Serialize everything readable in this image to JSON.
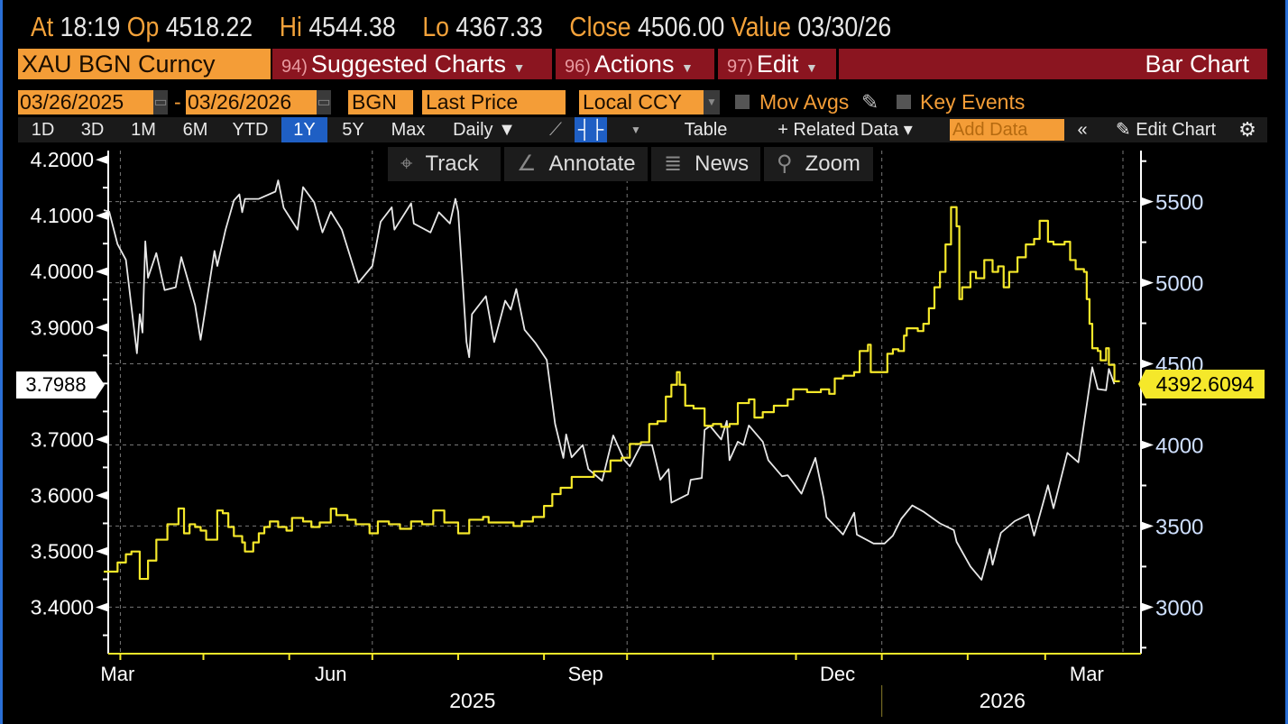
{
  "header": {
    "at_label": "At",
    "at_value": "18:19",
    "open_label": "Op",
    "open_value": "4518.22",
    "high_label": "Hi",
    "high_value": "4544.38",
    "low_label": "Lo",
    "low_value": "4367.33",
    "close_label": "Close",
    "close_value": "4506.00",
    "value_label": "Value",
    "value_date": "03/30/26"
  },
  "menu": {
    "security": "XAU BGN Curncy",
    "suggested_num": "94)",
    "suggested": "Suggested Charts",
    "actions_num": "96)",
    "actions": "Actions",
    "edit_num": "97)",
    "edit": "Edit",
    "chart_type": "Bar Chart"
  },
  "settings": {
    "start_date": "03/26/2025",
    "dash": "-",
    "end_date": "03/26/2026",
    "source": "BGN",
    "field": "Last Price",
    "currency": "Local CCY",
    "mov_avgs": "Mov Avgs",
    "key_events": "Key Events"
  },
  "toolbar": {
    "periods": [
      "1D",
      "3D",
      "1M",
      "6M",
      "YTD",
      "1Y",
      "5Y",
      "Max"
    ],
    "selected_period": "1Y",
    "frequency": "Daily ▼",
    "table": "Table",
    "related_data": "+ Related Data ▾",
    "add_data_placeholder": "Add Data",
    "collapse": "«",
    "edit_chart": "Edit Chart"
  },
  "chart_tools": {
    "track": "Track",
    "annotate": "Annotate",
    "news": "News",
    "zoom": "Zoom"
  },
  "colors": {
    "white_series": "#e8e8e8",
    "yellow_series": "#f5e82a",
    "accent_orange": "#f49d37",
    "maroon": "#8b1520",
    "selected_blue": "#1f5fc4"
  },
  "chart_data": {
    "type": "line",
    "title": "",
    "x_range": [
      "2025-03-26",
      "2026-03-26"
    ],
    "x_month_labels": [
      "Mar",
      "Jun",
      "Sep",
      "Dec",
      "Mar"
    ],
    "x_year_labels": [
      "2025",
      "2026"
    ],
    "grid": true,
    "left_axis": {
      "ylim": [
        3.3171,
        4.2163
      ],
      "ticks": [
        "4.2000",
        "4.1000",
        "4.0000",
        "3.9000",
        "3.7000",
        "3.6000",
        "3.5000",
        "3.4000"
      ],
      "last_value": "3.7988"
    },
    "right_axis": {
      "ylim": [
        2713,
        5815
      ],
      "ticks": [
        "5500",
        "5000",
        "4500",
        "4000",
        "3500",
        "3000"
      ],
      "last_value": "4392.6094"
    },
    "series": [
      {
        "axis": "left",
        "style": "line",
        "color": "#e8e8e8",
        "points": [
          [
            "2025-03-26",
            4.11
          ],
          [
            "2025-03-28",
            4.107
          ],
          [
            "2025-03-31",
            4.049
          ],
          [
            "2025-04-03",
            4.021
          ],
          [
            "2025-04-07",
            3.854
          ],
          [
            "2025-04-08",
            3.924
          ],
          [
            "2025-04-09",
            3.891
          ],
          [
            "2025-04-10",
            4.054
          ],
          [
            "2025-04-11",
            3.989
          ],
          [
            "2025-04-14",
            4.033
          ],
          [
            "2025-04-17",
            3.967
          ],
          [
            "2025-04-21",
            3.972
          ],
          [
            "2025-04-23",
            4.026
          ],
          [
            "2025-04-28",
            3.94
          ],
          [
            "2025-04-30",
            3.878
          ],
          [
            "2025-05-05",
            4.037
          ],
          [
            "2025-05-06",
            4.01
          ],
          [
            "2025-05-09",
            4.075
          ],
          [
            "2025-05-12",
            4.127
          ],
          [
            "2025-05-14",
            4.138
          ],
          [
            "2025-05-15",
            4.106
          ],
          [
            "2025-05-16",
            4.13
          ],
          [
            "2025-05-21",
            4.13
          ],
          [
            "2025-05-27",
            4.143
          ],
          [
            "2025-05-28",
            4.163
          ],
          [
            "2025-05-30",
            4.114
          ],
          [
            "2025-06-04",
            4.075
          ],
          [
            "2025-06-06",
            4.151
          ],
          [
            "2025-06-10",
            4.124
          ],
          [
            "2025-06-13",
            4.07
          ],
          [
            "2025-06-16",
            4.107
          ],
          [
            "2025-06-20",
            4.075
          ],
          [
            "2025-06-26",
            3.98
          ],
          [
            "2025-07-01",
            4.01
          ],
          [
            "2025-07-04",
            4.089
          ],
          [
            "2025-07-08",
            4.115
          ],
          [
            "2025-07-09",
            4.075
          ],
          [
            "2025-07-15",
            4.122
          ],
          [
            "2025-07-16",
            4.086
          ],
          [
            "2025-07-22",
            4.07
          ],
          [
            "2025-07-25",
            4.106
          ],
          [
            "2025-07-29",
            4.086
          ],
          [
            "2025-07-31",
            4.13
          ],
          [
            "2025-08-01",
            4.107
          ],
          [
            "2025-08-04",
            3.874
          ],
          [
            "2025-08-05",
            3.847
          ],
          [
            "2025-08-06",
            3.924
          ],
          [
            "2025-08-11",
            3.956
          ],
          [
            "2025-08-14",
            3.874
          ],
          [
            "2025-08-18",
            3.948
          ],
          [
            "2025-08-20",
            3.932
          ],
          [
            "2025-08-22",
            3.969
          ],
          [
            "2025-08-25",
            3.896
          ],
          [
            "2025-08-29",
            3.872
          ],
          [
            "2025-09-02",
            3.842
          ],
          [
            "2025-09-05",
            3.728
          ],
          [
            "2025-09-08",
            3.667
          ],
          [
            "2025-09-09",
            3.709
          ],
          [
            "2025-09-11",
            3.668
          ],
          [
            "2025-09-15",
            3.69
          ],
          [
            "2025-09-17",
            3.647
          ],
          [
            "2025-09-22",
            3.626
          ],
          [
            "2025-09-26",
            3.707
          ],
          [
            "2025-09-30",
            3.663
          ],
          [
            "2025-10-02",
            3.652
          ],
          [
            "2025-10-06",
            3.69
          ],
          [
            "2025-10-10",
            3.69
          ],
          [
            "2025-10-13",
            3.628
          ],
          [
            "2025-10-16",
            3.647
          ],
          [
            "2025-10-17",
            3.587
          ],
          [
            "2025-10-23",
            3.602
          ],
          [
            "2025-10-24",
            3.628
          ],
          [
            "2025-10-28",
            3.631
          ],
          [
            "2025-10-29",
            3.717
          ],
          [
            "2025-10-31",
            3.724
          ],
          [
            "2025-11-04",
            3.7
          ],
          [
            "2025-11-06",
            3.733
          ],
          [
            "2025-11-07",
            3.663
          ],
          [
            "2025-11-10",
            3.696
          ],
          [
            "2025-11-12",
            3.69
          ],
          [
            "2025-11-14",
            3.725
          ],
          [
            "2025-11-19",
            3.696
          ],
          [
            "2025-11-21",
            3.663
          ],
          [
            "2025-11-26",
            3.634
          ],
          [
            "2025-11-28",
            3.636
          ],
          [
            "2025-12-03",
            3.603
          ],
          [
            "2025-12-08",
            3.667
          ],
          [
            "2025-12-11",
            3.595
          ],
          [
            "2025-12-12",
            3.561
          ],
          [
            "2025-12-18",
            3.53
          ],
          [
            "2025-12-22",
            3.569
          ],
          [
            "2025-12-23",
            3.53
          ],
          [
            "2025-12-29",
            3.514
          ],
          [
            "2026-01-02",
            3.514
          ],
          [
            "2026-01-05",
            3.528
          ],
          [
            "2026-01-08",
            3.558
          ],
          [
            "2026-01-12",
            3.582
          ],
          [
            "2026-01-16",
            3.571
          ],
          [
            "2026-01-22",
            3.55
          ],
          [
            "2026-01-27",
            3.538
          ],
          [
            "2026-01-28",
            3.517
          ],
          [
            "2026-02-02",
            3.473
          ],
          [
            "2026-02-06",
            3.449
          ],
          [
            "2026-02-09",
            3.504
          ],
          [
            "2026-02-10",
            3.476
          ],
          [
            "2026-02-13",
            3.533
          ],
          [
            "2026-02-18",
            3.554
          ],
          [
            "2026-02-23",
            3.566
          ],
          [
            "2026-02-25",
            3.528
          ],
          [
            "2026-03-02",
            3.618
          ],
          [
            "2026-03-04",
            3.577
          ],
          [
            "2026-03-09",
            3.676
          ],
          [
            "2026-03-13",
            3.659
          ],
          [
            "2026-03-18",
            3.829
          ],
          [
            "2026-03-20",
            3.79
          ],
          [
            "2026-03-23",
            3.788
          ],
          [
            "2026-03-24",
            3.826
          ],
          [
            "2026-03-26",
            3.7988
          ]
        ]
      },
      {
        "axis": "right",
        "style": "bar",
        "color": "#f5e82a",
        "points": [
          [
            "2025-03-26",
            3219
          ],
          [
            "2025-03-31",
            3275
          ],
          [
            "2025-04-03",
            3326
          ],
          [
            "2025-04-05",
            3343
          ],
          [
            "2025-04-08",
            3174
          ],
          [
            "2025-04-11",
            3287
          ],
          [
            "2025-04-14",
            3416
          ],
          [
            "2025-04-18",
            3511
          ],
          [
            "2025-04-22",
            3608
          ],
          [
            "2025-04-24",
            3455
          ],
          [
            "2025-04-26",
            3511
          ],
          [
            "2025-04-28",
            3494
          ],
          [
            "2025-04-30",
            3472
          ],
          [
            "2025-05-02",
            3416
          ],
          [
            "2025-05-06",
            3596
          ],
          [
            "2025-05-08",
            3579
          ],
          [
            "2025-05-10",
            3494
          ],
          [
            "2025-05-12",
            3438
          ],
          [
            "2025-05-15",
            3399
          ],
          [
            "2025-05-16",
            3343
          ],
          [
            "2025-05-19",
            3399
          ],
          [
            "2025-05-21",
            3455
          ],
          [
            "2025-05-23",
            3494
          ],
          [
            "2025-05-25",
            3528
          ],
          [
            "2025-05-28",
            3494
          ],
          [
            "2025-05-31",
            3472
          ],
          [
            "2025-06-02",
            3550
          ],
          [
            "2025-06-06",
            3528
          ],
          [
            "2025-06-09",
            3494
          ],
          [
            "2025-06-12",
            3522
          ],
          [
            "2025-06-16",
            3607
          ],
          [
            "2025-06-18",
            3567
          ],
          [
            "2025-06-22",
            3539
          ],
          [
            "2025-06-25",
            3511
          ],
          [
            "2025-06-30",
            3455
          ],
          [
            "2025-07-03",
            3528
          ],
          [
            "2025-07-07",
            3511
          ],
          [
            "2025-07-11",
            3483
          ],
          [
            "2025-07-15",
            3528
          ],
          [
            "2025-07-19",
            3511
          ],
          [
            "2025-07-23",
            3596
          ],
          [
            "2025-07-27",
            3522
          ],
          [
            "2025-08-01",
            3455
          ],
          [
            "2025-08-05",
            3539
          ],
          [
            "2025-08-10",
            3556
          ],
          [
            "2025-08-12",
            3522
          ],
          [
            "2025-08-16",
            3522
          ],
          [
            "2025-08-21",
            3500
          ],
          [
            "2025-08-24",
            3528
          ],
          [
            "2025-08-28",
            3556
          ],
          [
            "2025-09-01",
            3624
          ],
          [
            "2025-09-04",
            3697
          ],
          [
            "2025-09-07",
            3736
          ],
          [
            "2025-09-11",
            3803
          ],
          [
            "2025-09-16",
            3803
          ],
          [
            "2025-09-19",
            3837
          ],
          [
            "2025-09-22",
            3837
          ],
          [
            "2025-09-25",
            3904
          ],
          [
            "2025-09-29",
            3921
          ],
          [
            "2025-10-02",
            4006
          ],
          [
            "2025-10-06",
            4017
          ],
          [
            "2025-10-09",
            4129
          ],
          [
            "2025-10-12",
            4146
          ],
          [
            "2025-10-15",
            4298
          ],
          [
            "2025-10-17",
            4371
          ],
          [
            "2025-10-19",
            4449
          ],
          [
            "2025-10-20",
            4371
          ],
          [
            "2025-10-22",
            4242
          ],
          [
            "2025-10-25",
            4225
          ],
          [
            "2025-10-29",
            4118
          ],
          [
            "2025-11-01",
            4129
          ],
          [
            "2025-11-04",
            4112
          ],
          [
            "2025-11-07",
            4129
          ],
          [
            "2025-11-10",
            4258
          ],
          [
            "2025-11-14",
            4281
          ],
          [
            "2025-11-16",
            4169
          ],
          [
            "2025-11-19",
            4202
          ],
          [
            "2025-11-23",
            4242
          ],
          [
            "2025-11-28",
            4281
          ],
          [
            "2025-11-30",
            4343
          ],
          [
            "2025-12-05",
            4326
          ],
          [
            "2025-12-10",
            4343
          ],
          [
            "2025-12-13",
            4315
          ],
          [
            "2025-12-15",
            4410
          ],
          [
            "2025-12-18",
            4427
          ],
          [
            "2025-12-22",
            4449
          ],
          [
            "2025-12-24",
            4579
          ],
          [
            "2025-12-27",
            4618
          ],
          [
            "2025-12-28",
            4449
          ],
          [
            "2026-01-01",
            4449
          ],
          [
            "2026-01-03",
            4562
          ],
          [
            "2026-01-05",
            4590
          ],
          [
            "2026-01-07",
            4579
          ],
          [
            "2026-01-09",
            4674
          ],
          [
            "2026-01-10",
            4719
          ],
          [
            "2026-01-14",
            4702
          ],
          [
            "2026-01-16",
            4747
          ],
          [
            "2026-01-18",
            4843
          ],
          [
            "2026-01-20",
            4972
          ],
          [
            "2026-01-22",
            5067
          ],
          [
            "2026-01-24",
            5236
          ],
          [
            "2026-01-26",
            5466
          ],
          [
            "2026-01-28",
            5348
          ],
          [
            "2026-01-29",
            4899
          ],
          [
            "2026-01-30",
            4972
          ],
          [
            "2026-02-02",
            5067
          ],
          [
            "2026-02-04",
            5028
          ],
          [
            "2026-02-07",
            5140
          ],
          [
            "2026-02-10",
            5067
          ],
          [
            "2026-02-12",
            5101
          ],
          [
            "2026-02-14",
            4972
          ],
          [
            "2026-02-16",
            5067
          ],
          [
            "2026-02-19",
            5157
          ],
          [
            "2026-02-22",
            5236
          ],
          [
            "2026-02-25",
            5270
          ],
          [
            "2026-02-27",
            5382
          ],
          [
            "2026-03-02",
            5253
          ],
          [
            "2026-03-04",
            5236
          ],
          [
            "2026-03-08",
            5253
          ],
          [
            "2026-03-10",
            5140
          ],
          [
            "2026-03-12",
            5084
          ],
          [
            "2026-03-15",
            5067
          ],
          [
            "2026-03-16",
            4899
          ],
          [
            "2026-03-17",
            4747
          ],
          [
            "2026-03-18",
            4596
          ],
          [
            "2026-03-20",
            4579
          ],
          [
            "2026-03-21",
            4522
          ],
          [
            "2026-03-23",
            4596
          ],
          [
            "2026-03-24",
            4494
          ],
          [
            "2026-03-26",
            4392.6094
          ]
        ]
      }
    ]
  }
}
